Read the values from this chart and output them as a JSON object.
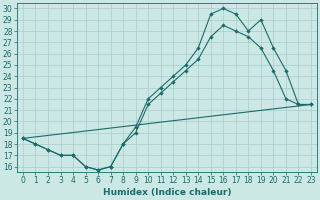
{
  "xlabel": "Humidex (Indice chaleur)",
  "bg_color": "#cce8e4",
  "grid_color": "#aacccc",
  "line_color": "#1a6b6b",
  "xlim": [
    -0.5,
    23.5
  ],
  "ylim": [
    15.5,
    30.5
  ],
  "yticks": [
    16,
    17,
    18,
    19,
    20,
    21,
    22,
    23,
    24,
    25,
    26,
    27,
    28,
    29,
    30
  ],
  "xticks": [
    0,
    1,
    2,
    3,
    4,
    5,
    6,
    7,
    8,
    9,
    10,
    11,
    12,
    13,
    14,
    15,
    16,
    17,
    18,
    19,
    20,
    21,
    22,
    23
  ],
  "line1_x": [
    0,
    1,
    2,
    3,
    4,
    5,
    6,
    7,
    8,
    9,
    10,
    11,
    12,
    13,
    14,
    15,
    16,
    17,
    18,
    19,
    20,
    21,
    22,
    23
  ],
  "line1_y": [
    18.5,
    18.0,
    17.5,
    17.0,
    17.0,
    16.0,
    15.7,
    16.0,
    18.0,
    19.0,
    21.5,
    22.5,
    23.5,
    24.5,
    25.5,
    27.5,
    28.5,
    28.0,
    27.5,
    26.5,
    24.5,
    22.0,
    21.5,
    21.5
  ],
  "line2_x": [
    0,
    23
  ],
  "line2_y": [
    18.5,
    21.5
  ],
  "line3_x": [
    0,
    1,
    2,
    3,
    4,
    5,
    6,
    7,
    8,
    9,
    10,
    11,
    12,
    13,
    14,
    15,
    16,
    17,
    18,
    19,
    20,
    21,
    22,
    23
  ],
  "line3_y": [
    18.5,
    18.0,
    17.5,
    17.0,
    17.0,
    16.0,
    15.7,
    16.0,
    18.0,
    19.5,
    22.0,
    23.0,
    24.0,
    25.0,
    26.5,
    29.5,
    30.0,
    29.5,
    28.0,
    29.0,
    26.5,
    24.5,
    21.5,
    21.5
  ],
  "tick_fontsize": 5.5,
  "xlabel_fontsize": 6.5
}
